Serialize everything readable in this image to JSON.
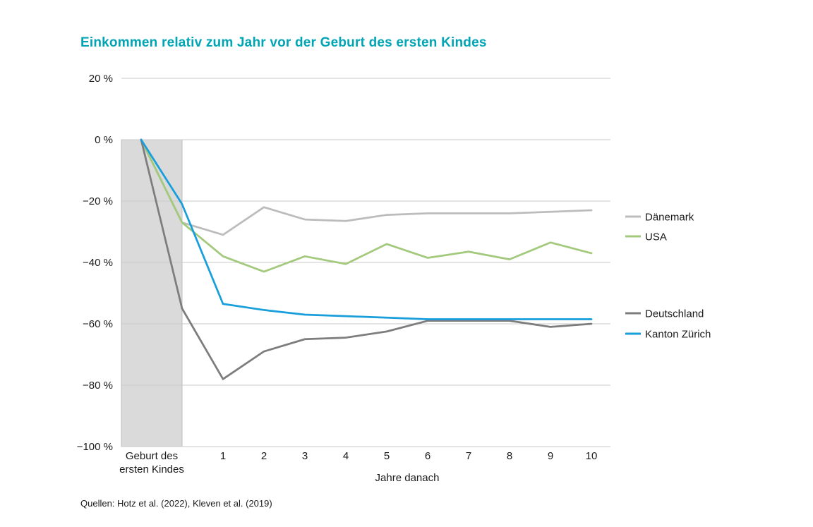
{
  "title": "Einkommen relativ zum Jahr vor der Geburt des ersten Kindes",
  "source": "Quellen: Hotz et al. (2022), Kleven et al. (2019)",
  "colors": {
    "title": "#00a5b5",
    "band_fill": "#dadada",
    "band_border": "#bdbdbd",
    "gridline": "#c9c9c9",
    "axis_text": "#1a1a1a"
  },
  "chart_data": {
    "type": "line",
    "title": "Einkommen relativ zum Jahr vor der Geburt des ersten Kindes",
    "xlabel": "Jahre danach",
    "ylabel": "",
    "ylim": [
      -100,
      20
    ],
    "grid": true,
    "legend_position": "right",
    "x": [
      -1,
      0,
      1,
      2,
      3,
      4,
      5,
      6,
      7,
      8,
      9,
      10
    ],
    "x_tick_labels": [
      "1",
      "2",
      "3",
      "4",
      "5",
      "6",
      "7",
      "8",
      "9",
      "10"
    ],
    "y_ticks": [
      20,
      0,
      -20,
      -40,
      -60,
      -80,
      -100
    ],
    "y_tick_labels": [
      "20 %",
      "0 %",
      "−20 %",
      "−40 %",
      "−60 %",
      "−80 %",
      "−100 %"
    ],
    "band_label_lines": [
      "Geburt des",
      "ersten Kindes"
    ],
    "series": [
      {
        "name": "Dänemark",
        "color": "#bcbcbc",
        "values": [
          0,
          -27,
          -31,
          -22,
          -26,
          -26.5,
          -24.5,
          -24,
          -24,
          -24,
          -23.5,
          -23
        ]
      },
      {
        "name": "USA",
        "color": "#a3c97d",
        "values": [
          0,
          -27,
          -38,
          -43,
          -38,
          -40.5,
          -34,
          -38.5,
          -36.5,
          -39,
          -33.5,
          -37
        ]
      },
      {
        "name": "Deutschland",
        "color": "#7d7d7d",
        "values": [
          0,
          -55,
          -78,
          -69,
          -65,
          -64.5,
          -62.5,
          -59,
          -59,
          -59,
          -61,
          -60
        ]
      },
      {
        "name": "Kanton Zürich",
        "color": "#189fdb",
        "values": [
          0,
          -21,
          -53.5,
          -55.5,
          -57,
          -57.5,
          -58,
          -58.5,
          -58.5,
          -58.5,
          -58.5,
          -58.5
        ]
      }
    ]
  }
}
